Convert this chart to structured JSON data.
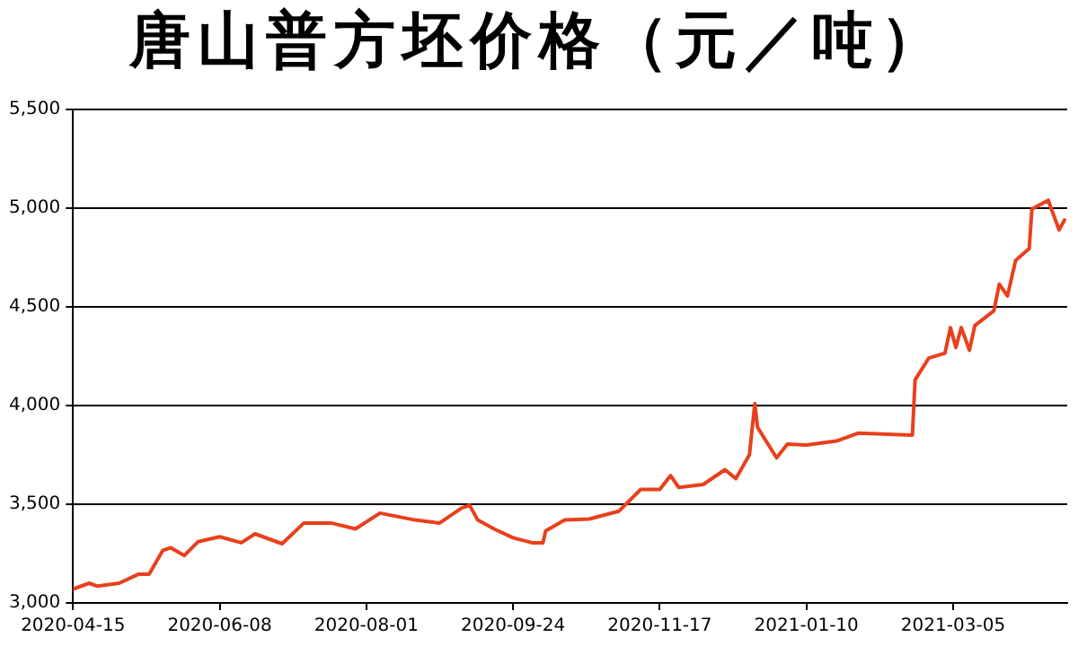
{
  "chart_data": {
    "type": "line",
    "title": "唐山普方坯价格（元／吨）",
    "x": [
      "2020-04-15",
      "2020-04-21",
      "2020-04-24",
      "2020-05-02",
      "2020-05-09",
      "2020-05-13",
      "2020-05-18",
      "2020-05-21",
      "2020-05-26",
      "2020-05-31",
      "2020-06-08",
      "2020-06-16",
      "2020-06-21",
      "2020-07-01",
      "2020-07-09",
      "2020-07-19",
      "2020-07-28",
      "2020-08-06",
      "2020-08-19",
      "2020-08-28",
      "2020-09-05",
      "2020-09-08",
      "2020-09-11",
      "2020-09-17",
      "2020-09-24",
      "2020-10-01",
      "2020-10-05",
      "2020-10-06",
      "2020-10-13",
      "2020-10-22",
      "2020-11-02",
      "2020-11-10",
      "2020-11-17",
      "2020-11-21",
      "2020-11-24",
      "2020-12-03",
      "2020-12-11",
      "2020-12-15",
      "2020-12-20",
      "2020-12-22",
      "2020-12-23",
      "2020-12-30",
      "2021-01-03",
      "2021-01-10",
      "2021-01-21",
      "2021-01-29",
      "2021-02-18",
      "2021-02-19",
      "2021-02-24",
      "2021-03-02",
      "2021-03-04",
      "2021-03-06",
      "2021-03-08",
      "2021-03-11",
      "2021-03-13",
      "2021-03-20",
      "2021-03-22",
      "2021-03-25",
      "2021-03-28",
      "2021-04-02",
      "2021-04-03",
      "2021-04-09",
      "2021-04-13",
      "2021-04-15"
    ],
    "series": [
      {
        "color": "#e8401c",
        "values": [
          3070,
          3100,
          3085,
          3100,
          3145,
          3145,
          3265,
          3280,
          3240,
          3310,
          3335,
          3305,
          3350,
          3300,
          3405,
          3405,
          3375,
          3455,
          3420,
          3405,
          3480,
          3495,
          3420,
          3375,
          3330,
          3305,
          3305,
          3365,
          3420,
          3425,
          3465,
          3575,
          3575,
          3645,
          3585,
          3600,
          3675,
          3630,
          3750,
          4010,
          3890,
          3735,
          3805,
          3800,
          3820,
          3860,
          3850,
          4130,
          4240,
          4265,
          4395,
          4295,
          4395,
          4280,
          4405,
          4480,
          4615,
          4555,
          4735,
          4795,
          4995,
          5040,
          4890,
          4940
        ]
      }
    ],
    "xlim": [
      "2020-04-15",
      "2021-04-16"
    ],
    "xticks": [
      "2020-04-15",
      "2020-06-08",
      "2020-08-01",
      "2020-09-24",
      "2020-11-17",
      "2021-01-10",
      "2021-03-05"
    ],
    "ylim": [
      3000,
      5500
    ],
    "yticks": [
      {
        "value": 3000,
        "label": "3,000"
      },
      {
        "value": 3500,
        "label": "3,500"
      },
      {
        "value": 4000,
        "label": "4,000"
      },
      {
        "value": 4500,
        "label": "4,500"
      },
      {
        "value": 5000,
        "label": "5,000"
      },
      {
        "value": 5500,
        "label": "5,500"
      }
    ],
    "grid": "y",
    "legend": false,
    "marker": "none",
    "line_style": "solid"
  }
}
